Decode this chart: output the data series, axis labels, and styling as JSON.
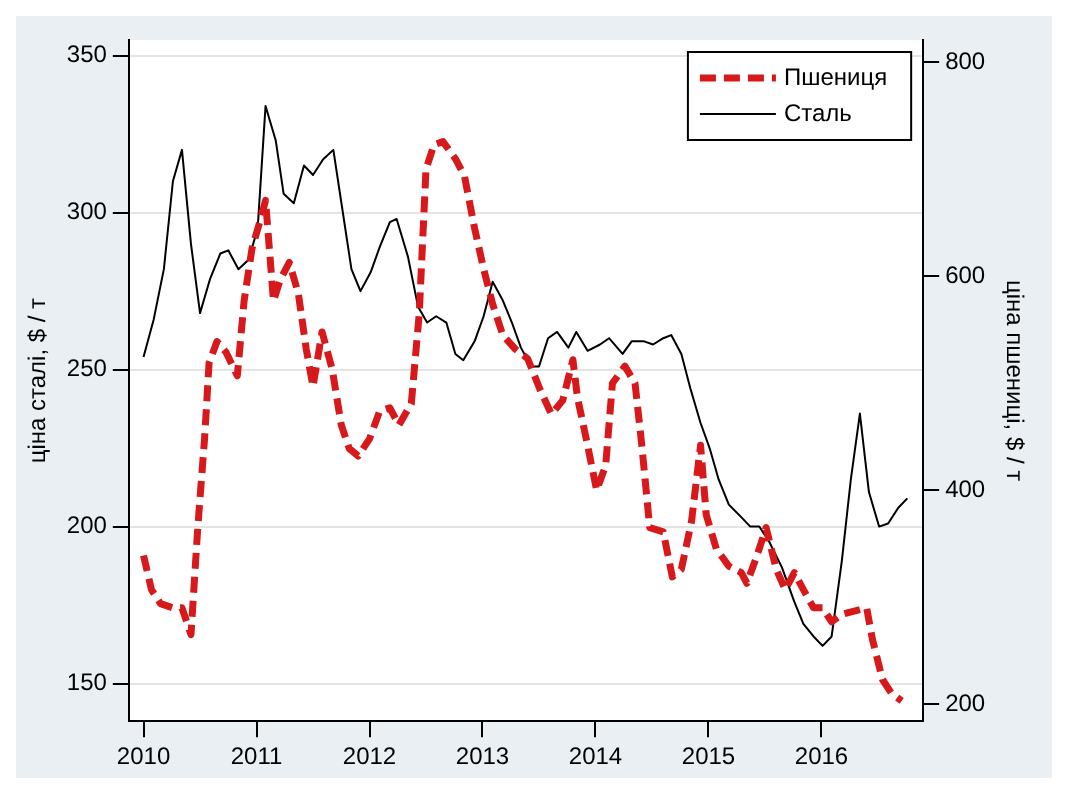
{
  "chart_data": {
    "type": "line",
    "ylabel": "ціна сталі, $ / т",
    "y2label": "ціна пшениці, $ / т",
    "xlim": [
      2009.87,
      2016.9
    ],
    "xticks": [
      2010,
      2011,
      2012,
      2013,
      2014,
      2015,
      2016
    ],
    "ylim": [
      138,
      355
    ],
    "yticks": [
      150,
      200,
      250,
      300,
      350
    ],
    "y2lim": [
      184,
      821
    ],
    "y2ticks": [
      200,
      400,
      600,
      800
    ],
    "grid": "y",
    "legend": "top right",
    "series": [
      {
        "name": "Пшениця",
        "color": "#d7191c",
        "axis": "y2",
        "line_style": "dashed",
        "x": [
          2010.0,
          2010.07,
          2010.15,
          2010.26,
          2010.34,
          2010.42,
          2010.48,
          2010.54,
          2010.58,
          2010.65,
          2010.73,
          2010.83,
          2010.89,
          2010.96,
          2011.04,
          2011.08,
          2011.15,
          2011.21,
          2011.29,
          2011.37,
          2011.44,
          2011.5,
          2011.58,
          2011.67,
          2011.75,
          2011.82,
          2011.9,
          2012.0,
          2012.09,
          2012.18,
          2012.26,
          2012.37,
          2012.44,
          2012.5,
          2012.57,
          2012.65,
          2012.76,
          2012.84,
          2012.93,
          2013.01,
          2013.09,
          2013.18,
          2013.29,
          2013.4,
          2013.51,
          2013.61,
          2013.71,
          2013.8,
          2013.84,
          2013.93,
          2014.01,
          2014.09,
          2014.15,
          2014.26,
          2014.35,
          2014.41,
          2014.48,
          2014.6,
          2014.68,
          2014.76,
          2014.85,
          2014.93,
          2014.98,
          2015.07,
          2015.18,
          2015.29,
          2015.34,
          2015.43,
          2015.51,
          2015.6,
          2015.68,
          2015.76,
          2015.84,
          2015.93,
          2016.01,
          2016.09,
          2016.18,
          2016.29,
          2016.4,
          2016.45,
          2016.54,
          2016.62,
          2016.71
        ],
        "values": [
          339,
          307,
          294,
          290,
          290,
          265,
          365,
          448,
          519,
          539,
          529,
          507,
          577,
          626,
          655,
          671,
          577,
          597,
          613,
          584,
          532,
          497,
          548,
          513,
          461,
          439,
          432,
          448,
          474,
          477,
          461,
          481,
          565,
          700,
          723,
          726,
          710,
          694,
          645,
          607,
          574,
          545,
          532,
          523,
          494,
          471,
          484,
          522,
          487,
          442,
          400,
          423,
          500,
          516,
          500,
          442,
          365,
          361,
          319,
          326,
          371,
          442,
          377,
          345,
          329,
          323,
          313,
          339,
          365,
          326,
          307,
          323,
          307,
          290,
          290,
          277,
          284,
          287,
          290,
          261,
          223,
          210,
          203
        ]
      },
      {
        "name": "Сталь",
        "color": "#000000",
        "line_style": "solid",
        "x": [
          2010.0,
          2010.09,
          2010.18,
          2010.26,
          2010.34,
          2010.42,
          2010.5,
          2010.59,
          2010.68,
          2010.75,
          2010.84,
          2010.93,
          2011.01,
          2011.08,
          2011.17,
          2011.24,
          2011.33,
          2011.42,
          2011.5,
          2011.59,
          2011.68,
          2011.76,
          2011.84,
          2011.92,
          2012.01,
          2012.09,
          2012.18,
          2012.24,
          2012.34,
          2012.43,
          2012.51,
          2012.59,
          2012.68,
          2012.76,
          2012.83,
          2012.93,
          2013.01,
          2013.09,
          2013.18,
          2013.26,
          2013.34,
          2013.43,
          2013.5,
          2013.58,
          2013.66,
          2013.76,
          2013.83,
          2013.93,
          2014.04,
          2014.12,
          2014.24,
          2014.32,
          2014.43,
          2014.51,
          2014.6,
          2014.67,
          2014.76,
          2014.84,
          2014.93,
          2015.01,
          2015.09,
          2015.18,
          2015.29,
          2015.37,
          2015.45,
          2015.54,
          2015.65,
          2015.76,
          2015.84,
          2015.93,
          2016.01,
          2016.09,
          2016.18,
          2016.26,
          2016.34,
          2016.42,
          2016.51,
          2016.59,
          2016.68,
          2016.76
        ],
        "values": [
          254,
          266,
          282,
          310,
          320,
          290,
          268,
          279,
          287,
          288,
          282,
          285,
          295,
          334,
          323,
          306,
          303,
          315,
          312,
          317,
          320,
          301,
          282,
          275,
          281,
          289,
          297,
          298,
          286,
          270,
          265,
          267,
          265,
          255,
          253,
          259,
          267,
          278,
          272,
          265,
          257,
          251,
          251,
          260,
          262,
          257,
          262,
          256,
          258,
          260,
          255,
          259,
          259,
          258,
          260,
          261,
          255,
          244,
          233,
          225,
          215,
          207,
          203,
          200,
          200,
          195,
          187,
          176,
          169,
          165,
          162,
          165,
          189,
          215,
          236,
          211,
          200,
          201,
          206,
          209
        ]
      }
    ]
  }
}
